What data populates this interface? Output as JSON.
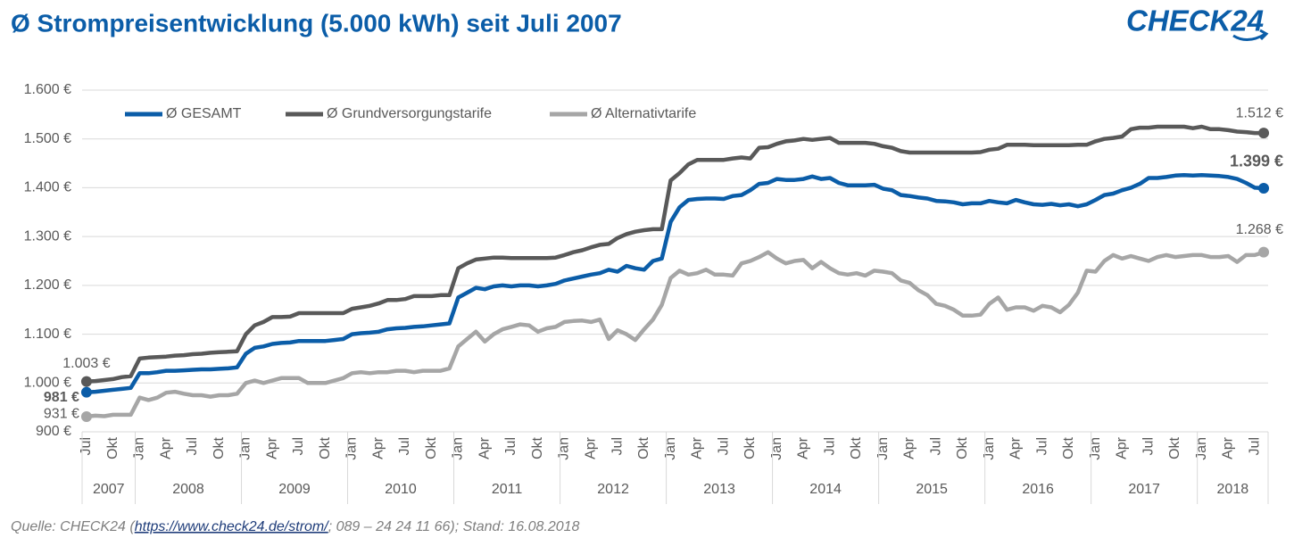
{
  "chart_data": {
    "type": "line",
    "title": "Ø Strompreisentwicklung (5.000 kWh) seit Juli 2007",
    "logo": "CHECK24",
    "source": {
      "prefix": "Quelle: CHECK24 (",
      "link": "https://www.check24.de/strom/",
      "suffix": "; 089 – 24 24 11 66); Stand: 16.08.2018"
    },
    "legend": "top-left",
    "grid": true,
    "ylim": [
      900,
      1600
    ],
    "yticks": [
      {
        "value": 900,
        "label": "900 €"
      },
      {
        "value": 1000,
        "label": "1.000 €"
      },
      {
        "value": 1100,
        "label": "1.100 €"
      },
      {
        "value": 1200,
        "label": "1.200 €"
      },
      {
        "value": 1300,
        "label": "1.300 €"
      },
      {
        "value": 1400,
        "label": "1.400 €"
      },
      {
        "value": 1500,
        "label": "1.500 €"
      },
      {
        "value": 1600,
        "label": "1.600 €"
      }
    ],
    "years": [
      "2007",
      "2008",
      "2009",
      "2010",
      "2011",
      "2012",
      "2013",
      "2014",
      "2015",
      "2016",
      "2017",
      "2018"
    ],
    "categories": [
      "Jul",
      null,
      null,
      "Okt",
      null,
      null,
      "Jan",
      null,
      null,
      "Apr",
      null,
      null,
      "Jul",
      null,
      null,
      "Okt",
      null,
      null,
      "Jan",
      null,
      null,
      "Apr",
      null,
      null,
      "Jul",
      null,
      null,
      "Okt",
      null,
      null,
      "Jan",
      null,
      null,
      "Apr",
      null,
      null,
      "Jul",
      null,
      null,
      "Okt",
      null,
      null,
      "Jan",
      null,
      null,
      "Apr",
      null,
      null,
      "Jul",
      null,
      null,
      "Okt",
      null,
      null,
      "Jan",
      null,
      null,
      "Apr",
      null,
      null,
      "Jul",
      null,
      null,
      "Okt",
      null,
      null,
      "Jan",
      null,
      null,
      "Apr",
      null,
      null,
      "Jul",
      null,
      null,
      "Okt",
      null,
      null,
      "Jan",
      null,
      null,
      "Apr",
      null,
      null,
      "Jul",
      null,
      null,
      "Okt",
      null,
      null,
      "Jan",
      null,
      null,
      "Apr",
      null,
      null,
      "Jul",
      null,
      null,
      "Okt",
      null,
      null,
      "Jan",
      null,
      null,
      "Apr",
      null,
      null,
      "Jul",
      null,
      null,
      "Okt",
      null,
      null,
      "Jan",
      null,
      null,
      "Apr",
      null,
      null,
      "Jul",
      null,
      null,
      "Okt",
      null,
      null,
      "Jan",
      null,
      null,
      "Apr",
      null,
      null,
      "Jul",
      null
    ],
    "series": [
      {
        "name": "Ø GESAMT",
        "color": "#0b5da8",
        "values": [
          981,
          982,
          984,
          986,
          988,
          990,
          1020,
          1020,
          1022,
          1025,
          1025,
          1026,
          1027,
          1028,
          1028,
          1029,
          1030,
          1032,
          1060,
          1072,
          1075,
          1080,
          1082,
          1083,
          1086,
          1086,
          1086,
          1086,
          1088,
          1090,
          1100,
          1102,
          1103,
          1105,
          1110,
          1112,
          1113,
          1115,
          1116,
          1118,
          1120,
          1122,
          1175,
          1185,
          1195,
          1192,
          1198,
          1200,
          1198,
          1200,
          1200,
          1198,
          1200,
          1203,
          1210,
          1214,
          1218,
          1222,
          1225,
          1232,
          1228,
          1240,
          1235,
          1232,
          1250,
          1255,
          1330,
          1360,
          1375,
          1377,
          1378,
          1378,
          1377,
          1383,
          1385,
          1395,
          1408,
          1410,
          1418,
          1416,
          1416,
          1418,
          1423,
          1418,
          1420,
          1410,
          1405,
          1405,
          1405,
          1406,
          1398,
          1395,
          1385,
          1383,
          1380,
          1378,
          1373,
          1372,
          1370,
          1366,
          1368,
          1368,
          1373,
          1370,
          1368,
          1375,
          1370,
          1366,
          1365,
          1367,
          1364,
          1366,
          1362,
          1366,
          1375,
          1385,
          1388,
          1395,
          1400,
          1408,
          1420,
          1420,
          1422,
          1425,
          1426,
          1425,
          1426,
          1425,
          1424,
          1422,
          1418,
          1410,
          1400,
          1399
        ],
        "value_labels": [
          "981 €",
          null,
          null,
          null,
          null,
          null,
          null,
          null,
          null,
          null,
          null,
          null,
          null,
          null,
          null,
          null,
          null,
          null,
          null,
          null,
          null,
          null,
          null,
          null,
          null,
          null,
          null,
          null,
          null,
          null,
          null,
          null,
          null,
          null,
          null,
          null,
          null,
          null,
          null,
          null,
          null,
          null,
          null,
          null,
          null,
          null,
          null,
          null,
          null,
          null,
          null,
          null,
          null,
          null,
          null,
          null,
          null,
          null,
          null,
          null,
          null,
          null,
          null,
          null,
          null,
          null,
          null,
          null,
          null,
          null,
          null,
          null,
          null,
          null,
          null,
          null,
          null,
          null,
          null,
          null,
          null,
          null,
          null,
          null,
          null,
          null,
          null,
          null,
          null,
          null,
          null,
          null,
          null,
          null,
          null,
          null,
          null,
          null,
          null,
          null,
          null,
          null,
          null,
          null,
          null,
          null,
          null,
          null,
          null,
          null,
          null,
          null,
          null,
          null,
          null,
          null,
          null,
          null,
          null,
          null,
          null,
          null,
          null,
          null,
          null,
          null,
          null,
          null,
          null,
          null,
          null,
          null,
          null,
          "1.399 €"
        ]
      },
      {
        "name": "Ø Grundversorgungstarife",
        "color": "#595959",
        "values": [
          1003,
          1004,
          1006,
          1008,
          1012,
          1014,
          1050,
          1052,
          1053,
          1054,
          1056,
          1057,
          1059,
          1060,
          1062,
          1063,
          1064,
          1065,
          1100,
          1118,
          1125,
          1135,
          1135,
          1136,
          1143,
          1143,
          1143,
          1143,
          1143,
          1143,
          1152,
          1155,
          1158,
          1163,
          1170,
          1170,
          1172,
          1178,
          1178,
          1178,
          1180,
          1180,
          1235,
          1245,
          1253,
          1255,
          1257,
          1257,
          1256,
          1256,
          1256,
          1256,
          1256,
          1257,
          1262,
          1268,
          1272,
          1278,
          1283,
          1285,
          1297,
          1305,
          1310,
          1313,
          1315,
          1315,
          1415,
          1430,
          1448,
          1457,
          1457,
          1457,
          1457,
          1460,
          1462,
          1460,
          1482,
          1483,
          1490,
          1495,
          1497,
          1500,
          1498,
          1500,
          1502,
          1492,
          1492,
          1492,
          1492,
          1490,
          1485,
          1482,
          1475,
          1472,
          1472,
          1472,
          1472,
          1472,
          1472,
          1472,
          1472,
          1473,
          1478,
          1480,
          1488,
          1488,
          1488,
          1487,
          1487,
          1487,
          1487,
          1487,
          1488,
          1488,
          1495,
          1500,
          1502,
          1505,
          1520,
          1523,
          1523,
          1525,
          1525,
          1525,
          1525,
          1522,
          1525,
          1520,
          1520,
          1518,
          1515,
          1514,
          1512,
          1512
        ],
        "value_labels": [
          "1.003 €",
          null,
          null,
          null,
          null,
          null,
          null,
          null,
          null,
          null,
          null,
          null,
          null,
          null,
          null,
          null,
          null,
          null,
          null,
          null,
          null,
          null,
          null,
          null,
          null,
          null,
          null,
          null,
          null,
          null,
          null,
          null,
          null,
          null,
          null,
          null,
          null,
          null,
          null,
          null,
          null,
          null,
          null,
          null,
          null,
          null,
          null,
          null,
          null,
          null,
          null,
          null,
          null,
          null,
          null,
          null,
          null,
          null,
          null,
          null,
          null,
          null,
          null,
          null,
          null,
          null,
          null,
          null,
          null,
          null,
          null,
          null,
          null,
          null,
          null,
          null,
          null,
          null,
          null,
          null,
          null,
          null,
          null,
          null,
          null,
          null,
          null,
          null,
          null,
          null,
          null,
          null,
          null,
          null,
          null,
          null,
          null,
          null,
          null,
          null,
          null,
          null,
          null,
          null,
          null,
          null,
          null,
          null,
          null,
          null,
          null,
          null,
          null,
          null,
          null,
          null,
          null,
          null,
          null,
          null,
          null,
          null,
          null,
          null,
          null,
          null,
          null,
          null,
          null,
          null,
          null,
          null,
          null,
          "1.512 €"
        ]
      },
      {
        "name": "Ø Alternativtarife",
        "color": "#a6a6a6",
        "values": [
          931,
          933,
          932,
          935,
          935,
          935,
          970,
          965,
          970,
          980,
          982,
          978,
          975,
          975,
          972,
          975,
          975,
          978,
          1000,
          1005,
          1000,
          1005,
          1010,
          1010,
          1010,
          1000,
          1000,
          1000,
          1005,
          1010,
          1020,
          1022,
          1020,
          1022,
          1022,
          1025,
          1025,
          1022,
          1025,
          1025,
          1025,
          1030,
          1075,
          1090,
          1105,
          1085,
          1100,
          1110,
          1115,
          1120,
          1118,
          1105,
          1112,
          1115,
          1125,
          1127,
          1128,
          1125,
          1130,
          1090,
          1108,
          1100,
          1088,
          1110,
          1130,
          1160,
          1215,
          1230,
          1222,
          1225,
          1232,
          1222,
          1222,
          1220,
          1245,
          1250,
          1258,
          1268,
          1255,
          1245,
          1250,
          1252,
          1235,
          1248,
          1235,
          1225,
          1222,
          1225,
          1220,
          1230,
          1228,
          1225,
          1210,
          1205,
          1190,
          1180,
          1162,
          1158,
          1150,
          1138,
          1138,
          1140,
          1162,
          1175,
          1150,
          1155,
          1155,
          1148,
          1158,
          1155,
          1145,
          1160,
          1185,
          1230,
          1228,
          1250,
          1262,
          1255,
          1260,
          1255,
          1250,
          1258,
          1262,
          1258,
          1260,
          1262,
          1262,
          1258,
          1258,
          1260,
          1248,
          1262,
          1262,
          1268
        ],
        "value_labels": [
          "931 €",
          null,
          null,
          null,
          null,
          null,
          null,
          null,
          null,
          null,
          null,
          null,
          null,
          null,
          null,
          null,
          null,
          null,
          null,
          null,
          null,
          null,
          null,
          null,
          null,
          null,
          null,
          null,
          null,
          null,
          null,
          null,
          null,
          null,
          null,
          null,
          null,
          null,
          null,
          null,
          null,
          null,
          null,
          null,
          null,
          null,
          null,
          null,
          null,
          null,
          null,
          null,
          null,
          null,
          null,
          null,
          null,
          null,
          null,
          null,
          null,
          null,
          null,
          null,
          null,
          null,
          null,
          null,
          null,
          null,
          null,
          null,
          null,
          null,
          null,
          null,
          null,
          null,
          null,
          null,
          null,
          null,
          null,
          null,
          null,
          null,
          null,
          null,
          null,
          null,
          null,
          null,
          null,
          null,
          null,
          null,
          null,
          null,
          null,
          null,
          null,
          null,
          null,
          null,
          null,
          null,
          null,
          null,
          null,
          null,
          null,
          null,
          null,
          null,
          null,
          null,
          null,
          null,
          null,
          null,
          null,
          null,
          null,
          null,
          null,
          null,
          null,
          null,
          null,
          null,
          null,
          null,
          null,
          "1.268 €"
        ]
      }
    ]
  }
}
